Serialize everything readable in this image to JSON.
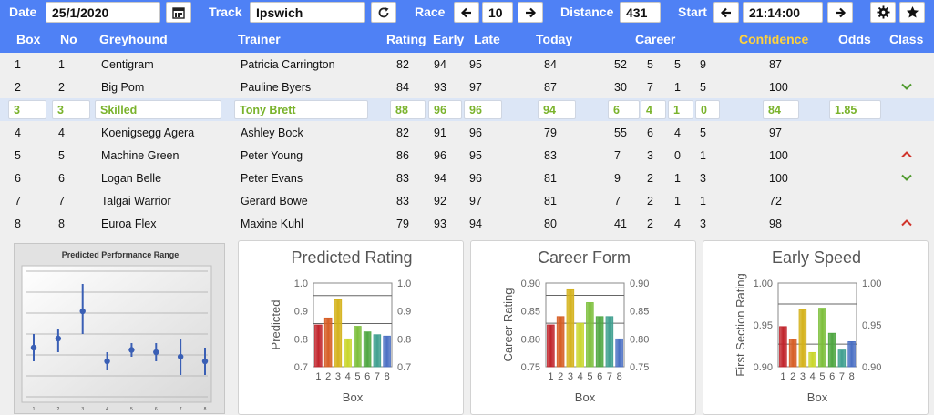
{
  "topbar": {
    "date_label": "Date",
    "date_value": "25/1/2020",
    "track_label": "Track",
    "track_value": "Ipswich",
    "race_label": "Race",
    "race_value": "10",
    "distance_label": "Distance",
    "distance_value": "431",
    "start_label": "Start",
    "start_value": "21:14:00",
    "icons": {
      "calendar": "calendar-icon",
      "refresh": "refresh-icon",
      "prev": "arrow-left-icon",
      "next": "arrow-right-icon",
      "settings": "gear-icon",
      "favourite": "star-icon"
    }
  },
  "columns": {
    "box": "Box",
    "no": "No",
    "greyhound": "Greyhound",
    "trainer": "Trainer",
    "rating": "Rating",
    "early": "Early",
    "late": "Late",
    "today": "Today",
    "career": "Career",
    "confidence": "Confidence",
    "odds": "Odds",
    "class": "Class"
  },
  "rows": [
    {
      "box": "1",
      "no": "1",
      "greyhound": "Centigram",
      "trainer": "Patricia Carrington",
      "rating": "82",
      "early": "94",
      "late": "95",
      "today": "84",
      "career": [
        "52",
        "5",
        "5",
        "9"
      ],
      "confidence": "87",
      "odds": "",
      "class": ""
    },
    {
      "box": "2",
      "no": "2",
      "greyhound": "Big Pom",
      "trainer": "Pauline Byers",
      "rating": "84",
      "early": "93",
      "late": "97",
      "today": "87",
      "career": [
        "30",
        "7",
        "1",
        "5"
      ],
      "confidence": "100",
      "odds": "",
      "class": "down"
    },
    {
      "box": "3",
      "no": "3",
      "greyhound": "Skilled",
      "trainer": "Tony Brett",
      "rating": "88",
      "early": "96",
      "late": "96",
      "today": "94",
      "career": [
        "6",
        "4",
        "1",
        "0"
      ],
      "confidence": "84",
      "odds": "1.85",
      "class": "",
      "selected": true
    },
    {
      "box": "4",
      "no": "4",
      "greyhound": "Koenigsegg Agera",
      "trainer": "Ashley Bock",
      "rating": "82",
      "early": "91",
      "late": "96",
      "today": "79",
      "career": [
        "55",
        "6",
        "4",
        "5"
      ],
      "confidence": "97",
      "odds": "",
      "class": ""
    },
    {
      "box": "5",
      "no": "5",
      "greyhound": "Machine Green",
      "trainer": "Peter Young",
      "rating": "86",
      "early": "96",
      "late": "95",
      "today": "83",
      "career": [
        "7",
        "3",
        "0",
        "1"
      ],
      "confidence": "100",
      "odds": "",
      "class": "up"
    },
    {
      "box": "6",
      "no": "6",
      "greyhound": "Logan Belle",
      "trainer": "Peter Evans",
      "rating": "83",
      "early": "94",
      "late": "96",
      "today": "81",
      "career": [
        "9",
        "2",
        "1",
        "3"
      ],
      "confidence": "100",
      "odds": "",
      "class": "down"
    },
    {
      "box": "7",
      "no": "7",
      "greyhound": "Talgai Warrior",
      "trainer": "Gerard Bowe",
      "rating": "83",
      "early": "92",
      "late": "97",
      "today": "81",
      "career": [
        "7",
        "2",
        "1",
        "1"
      ],
      "confidence": "72",
      "odds": "",
      "class": ""
    },
    {
      "box": "8",
      "no": "8",
      "greyhound": "Euroa Flex",
      "trainer": "Maxine Kuhl",
      "rating": "79",
      "early": "93",
      "late": "94",
      "today": "80",
      "career": [
        "41",
        "2",
        "4",
        "3"
      ],
      "confidence": "98",
      "odds": "",
      "class": "up"
    }
  ],
  "colors": {
    "header_bg": "#4f81f5",
    "confidence_header": "#ffd23c",
    "selected_text": "#7ab32c",
    "arrow_up": "#d0342c",
    "arrow_down": "#4f9a2d",
    "bar_colors": [
      "#c0232b",
      "#d65d24",
      "#d4b21a",
      "#c9d62a",
      "#7cbf3a",
      "#4ea640",
      "#3f9f8f",
      "#4a6fc3"
    ]
  },
  "chart_data": [
    {
      "type": "scatter",
      "title": "Predicted Performance Range",
      "x": [
        "1",
        "2",
        "3",
        "4",
        "5",
        "6",
        "7",
        "8"
      ],
      "y": [
        0.82,
        0.84,
        0.9,
        0.79,
        0.815,
        0.81,
        0.8,
        0.79
      ],
      "y_low": [
        0.79,
        0.81,
        0.85,
        0.77,
        0.8,
        0.79,
        0.76,
        0.76
      ],
      "y_high": [
        0.85,
        0.86,
        0.96,
        0.81,
        0.83,
        0.83,
        0.84,
        0.82
      ],
      "ylim": [
        0.7,
        1.0
      ],
      "grid": true
    },
    {
      "type": "bar",
      "title": "Predicted Rating",
      "xlabel": "Box",
      "ylabel": "Predicted",
      "categories": [
        "1",
        "2",
        "3",
        "4",
        "5",
        "6",
        "7",
        "8"
      ],
      "values": [
        0.85,
        0.875,
        0.94,
        0.8,
        0.845,
        0.825,
        0.815,
        0.81
      ],
      "ylim": [
        0.7,
        1.0
      ],
      "yticks": [
        "0.7",
        "0.8",
        "0.9",
        "1.0"
      ],
      "ref_lines": [
        0.955,
        0.855
      ]
    },
    {
      "type": "bar",
      "title": "Career Form",
      "xlabel": "Box",
      "ylabel": "Career Rating",
      "categories": [
        "1",
        "2",
        "3",
        "4",
        "5",
        "6",
        "7",
        "8"
      ],
      "values": [
        0.825,
        0.84,
        0.888,
        0.828,
        0.865,
        0.84,
        0.84,
        0.8
      ],
      "ylim": [
        0.75,
        0.9
      ],
      "yticks": [
        "0.75",
        "0.80",
        "0.85",
        "0.90"
      ],
      "ref_lines": [
        0.878,
        0.828
      ]
    },
    {
      "type": "bar",
      "title": "Early Speed",
      "xlabel": "Box",
      "ylabel": "First Section Rating",
      "categories": [
        "1",
        "2",
        "3",
        "4",
        "5",
        "6",
        "7",
        "8"
      ],
      "values": [
        0.948,
        0.933,
        0.968,
        0.917,
        0.97,
        0.94,
        0.92,
        0.93
      ],
      "ylim": [
        0.9,
        1.0
      ],
      "yticks": [
        "0.90",
        "0.95",
        "1.00"
      ],
      "ref_lines": [
        0.975,
        0.927
      ]
    }
  ]
}
